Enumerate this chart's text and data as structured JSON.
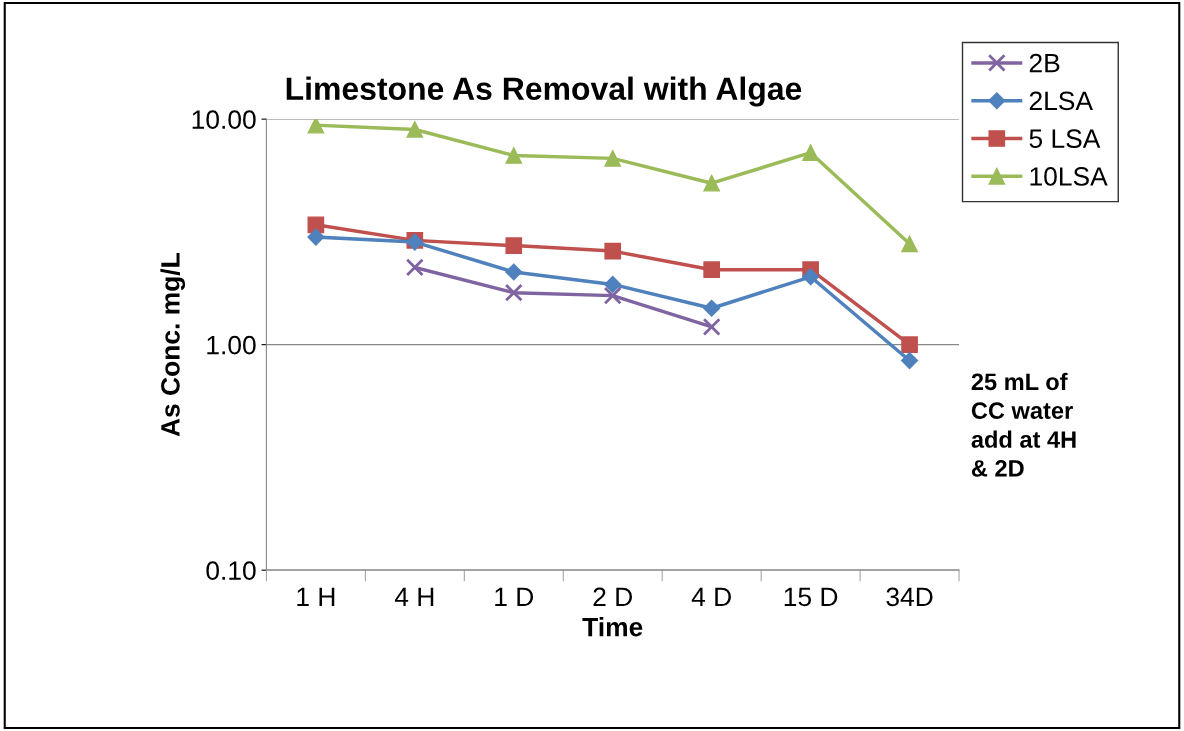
{
  "chart_data": {
    "type": "line",
    "title": "Limestone As Removal with Algae",
    "xlabel": "Time",
    "ylabel": "As Conc. mg/L",
    "categories": [
      "1 H",
      "4 H",
      "1 D",
      "2 D",
      "4 D",
      "15 D",
      "34D"
    ],
    "series": [
      {
        "name": "2B",
        "color": "#8064a2",
        "marker": "cross",
        "values": [
          null,
          2.2,
          1.7,
          1.65,
          1.2,
          null,
          null
        ]
      },
      {
        "name": "2LSA",
        "color": "#4f81bd",
        "marker": "diamond",
        "values": [
          3.0,
          2.85,
          2.1,
          1.85,
          1.45,
          2.0,
          0.85
        ]
      },
      {
        "name": "5 LSA",
        "color": "#c0504d",
        "marker": "square",
        "values": [
          3.4,
          2.9,
          2.75,
          2.6,
          2.15,
          2.15,
          1.0
        ]
      },
      {
        "name": "10LSA",
        "color": "#9bbb59",
        "marker": "triangle",
        "values": [
          9.4,
          9.0,
          6.9,
          6.7,
          5.2,
          7.1,
          2.8
        ]
      }
    ],
    "log": "y",
    "ylim": [
      0.1,
      10
    ],
    "yticks": [
      {
        "value": 0.1,
        "label": "0.10"
      },
      {
        "value": 1,
        "label": "1.00"
      },
      {
        "value": 10,
        "label": "10.00"
      }
    ],
    "grid": "y",
    "legend": "right",
    "annotations": [
      "25 mL of\nCC water\nadd at 4H\n& 2D"
    ]
  }
}
